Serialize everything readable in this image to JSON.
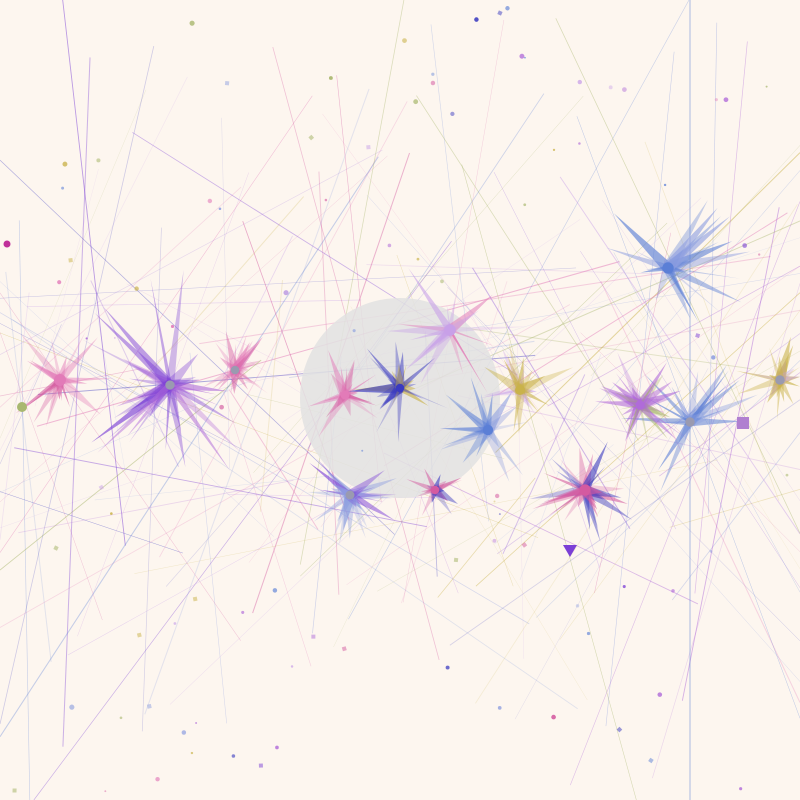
{
  "artwork": {
    "background": "#fdf6ef",
    "disc_color": "#e2e2e2",
    "palette": [
      "#7b3fd6",
      "#e27bb8",
      "#5b7fd6",
      "#c9b24a",
      "#b06bd9",
      "#d45aa0",
      "#8fa0e0",
      "#c8a0e8",
      "#a0b060",
      "#3a3ac0"
    ]
  }
}
